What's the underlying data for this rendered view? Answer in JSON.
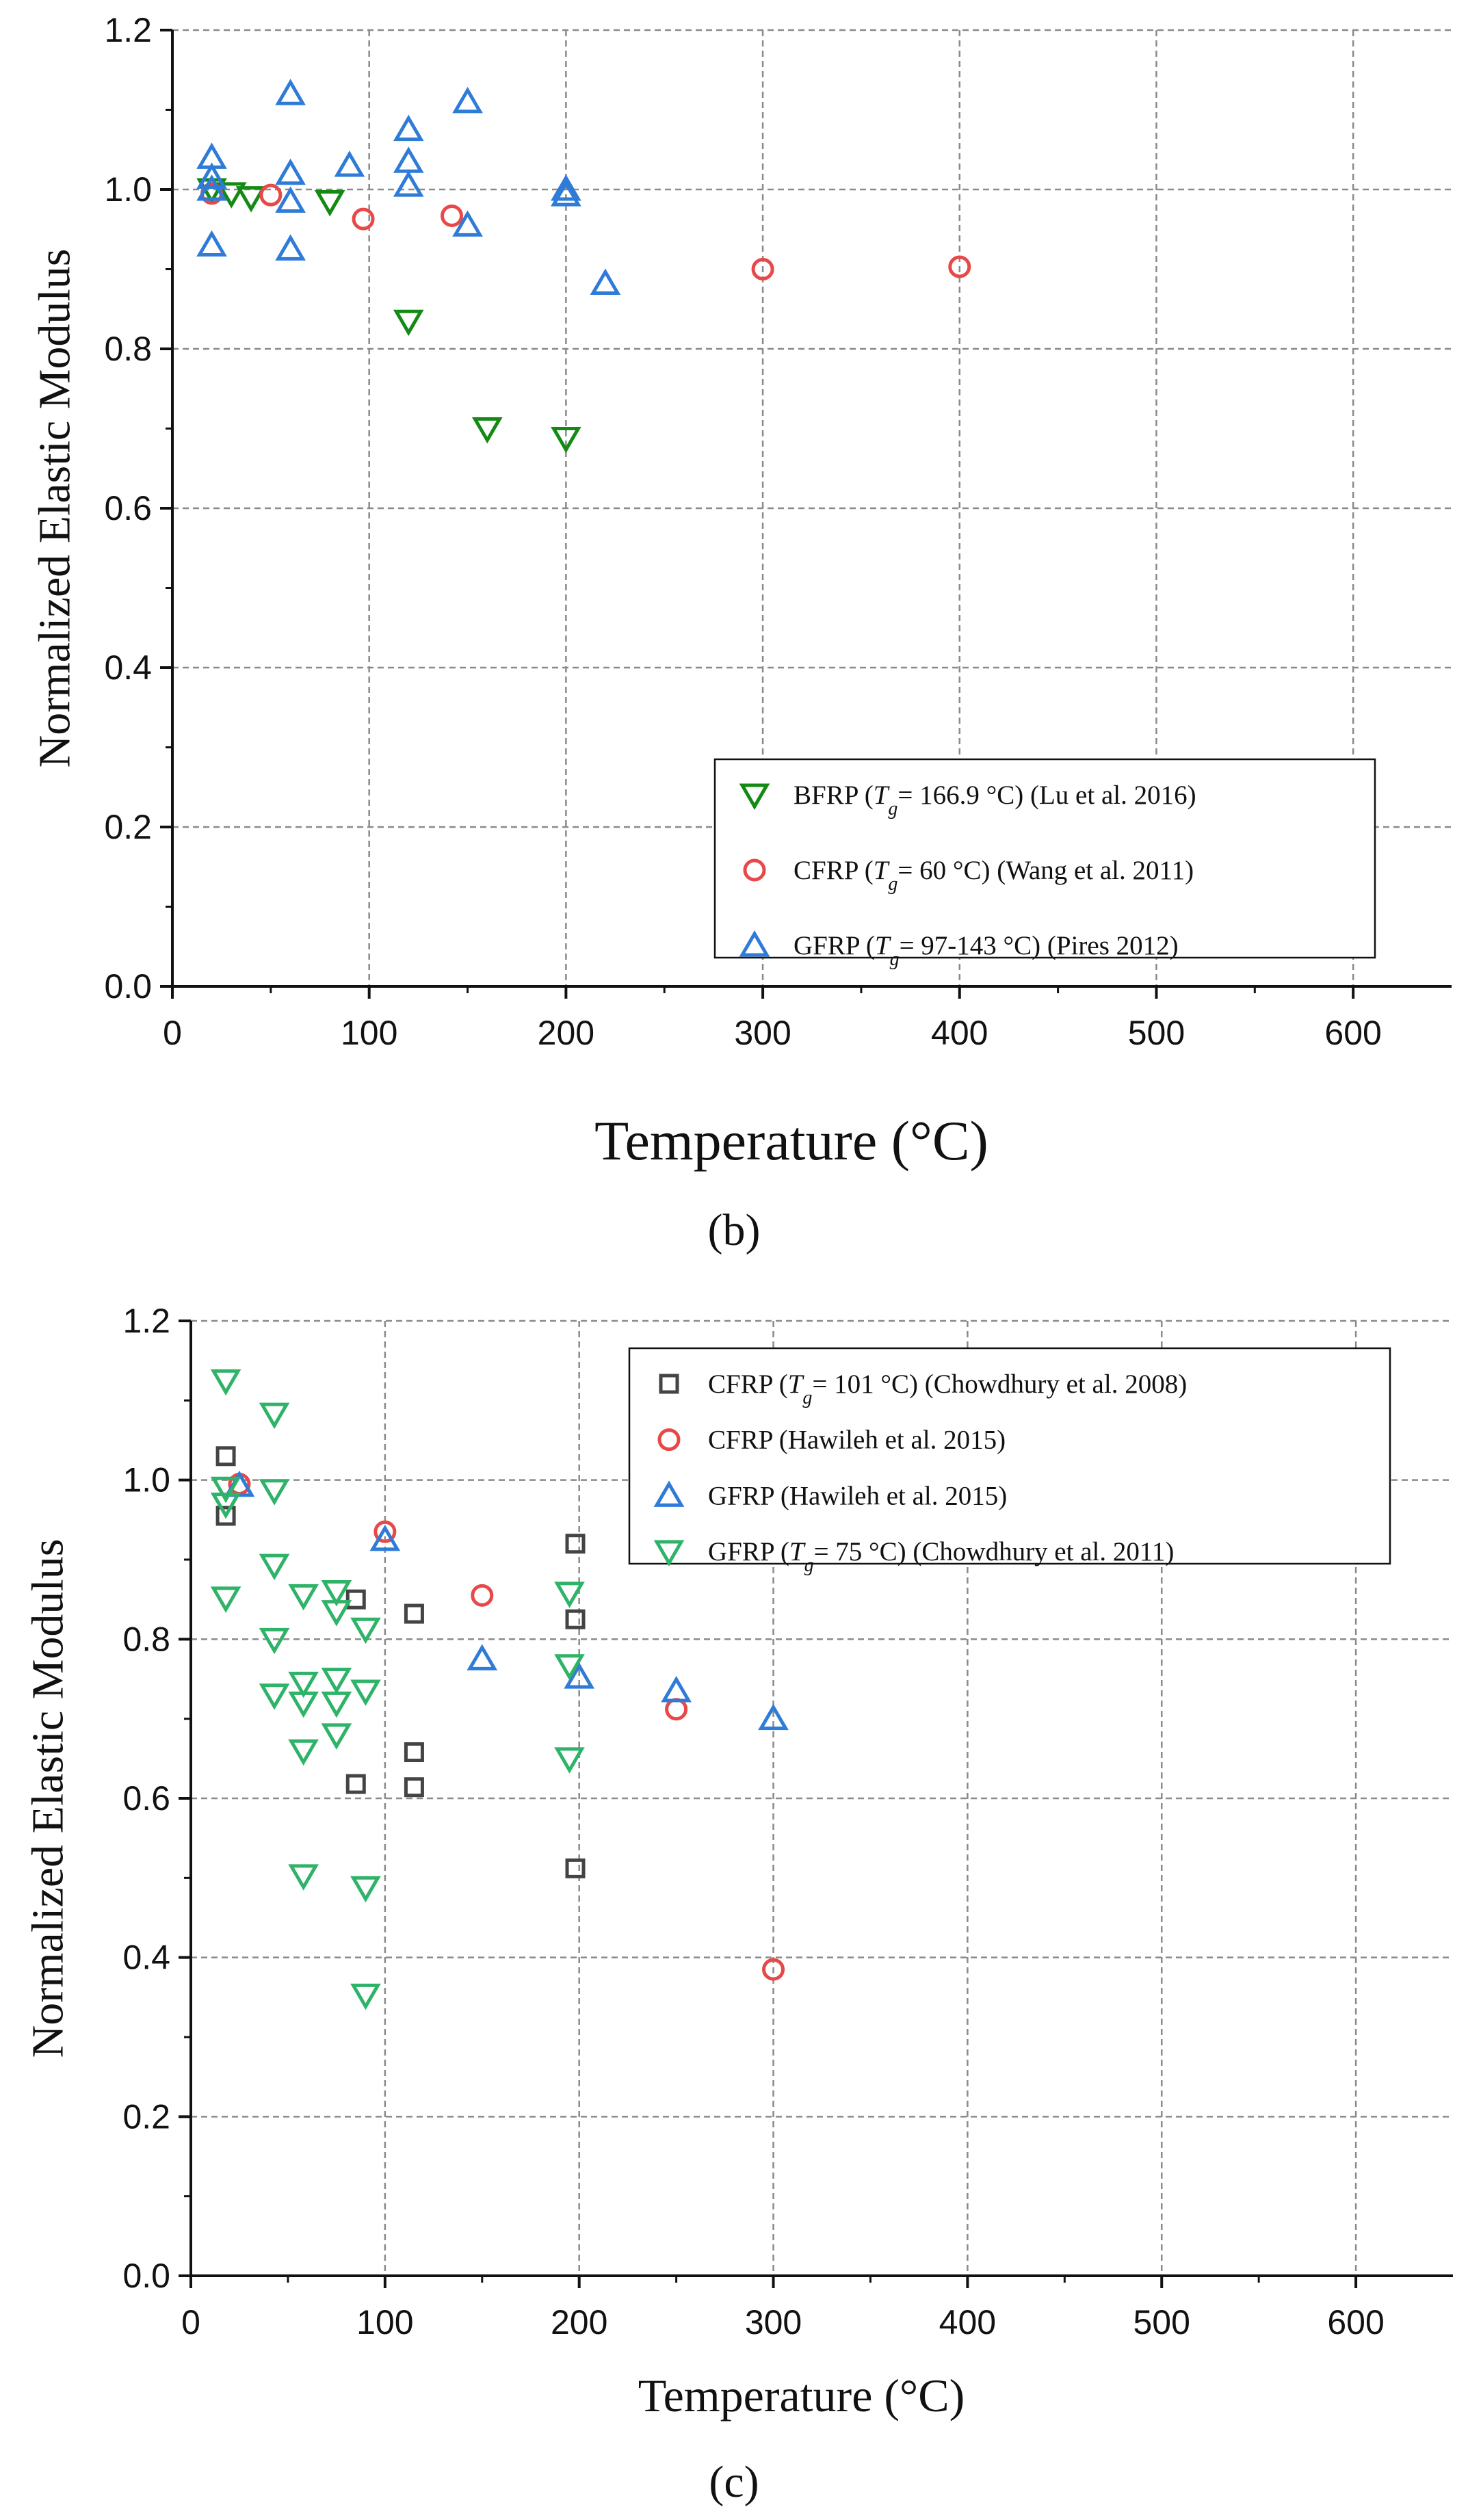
{
  "chart_data": [
    {
      "type": "scatter",
      "panel": "b",
      "caption": "(b)",
      "xlabel": "Temperature (°C)",
      "ylabel": "Normalized Elastic Modulus",
      "xlim": [
        0,
        650
      ],
      "ylim": [
        0,
        1.2
      ],
      "xticks": [
        0,
        100,
        200,
        300,
        400,
        500,
        600
      ],
      "yticks": [
        0.0,
        0.2,
        0.4,
        0.6,
        0.8,
        1.0,
        1.2
      ],
      "ytick_labels": [
        "0.0",
        "0.2",
        "0.4",
        "0.6",
        "0.8",
        "1.0",
        "1.2"
      ],
      "grid": true,
      "legend_position": "bottom-right",
      "series": [
        {
          "legend": [
            {
              "text": "BFRP ("
            },
            {
              "text": "T",
              "italic": true
            },
            {
              "text": "g",
              "italic": true,
              "sub": true
            },
            {
              "text": "= 166.9 °C) (Lu et al. 2016)"
            }
          ],
          "marker": "triangle-down",
          "color": "#138a13",
          "points": [
            [
              20,
              1.0
            ],
            [
              30,
              0.995
            ],
            [
              40,
              0.99
            ],
            [
              80,
              0.985
            ],
            [
              120,
              0.835
            ],
            [
              160,
              0.7
            ],
            [
              200,
              0.688
            ]
          ]
        },
        {
          "legend": [
            {
              "text": "CFRP ("
            },
            {
              "text": "T",
              "italic": true
            },
            {
              "text": "g",
              "italic": true,
              "sub": true
            },
            {
              "text": "= 60 °C) (Wang et al. 2011)"
            }
          ],
          "marker": "circle",
          "color": "#e84848",
          "points": [
            [
              20,
              0.995
            ],
            [
              50,
              0.993
            ],
            [
              97,
              0.963
            ],
            [
              142,
              0.967
            ],
            [
              300,
              0.9
            ],
            [
              400,
              0.903
            ]
          ]
        },
        {
          "legend": [
            {
              "text": "GFRP ("
            },
            {
              "text": "T",
              "italic": true
            },
            {
              "text": "g",
              "italic": true,
              "sub": true
            },
            {
              "text": "= 97-143 °C) (Pires 2012)"
            }
          ],
          "marker": "triangle-up",
          "color": "#2f7bd8",
          "points": [
            [
              20,
              1.04
            ],
            [
              20,
              1.015
            ],
            [
              20,
              1.0
            ],
            [
              20,
              0.93
            ],
            [
              60,
              1.12
            ],
            [
              60,
              1.02
            ],
            [
              60,
              0.985
            ],
            [
              60,
              0.925
            ],
            [
              90,
              1.03
            ],
            [
              120,
              1.075
            ],
            [
              120,
              1.035
            ],
            [
              120,
              1.005
            ],
            [
              150,
              1.11
            ],
            [
              150,
              0.955
            ],
            [
              200,
              1.0
            ],
            [
              200,
              0.993
            ],
            [
              220,
              0.882
            ]
          ]
        }
      ]
    },
    {
      "type": "scatter",
      "panel": "c",
      "caption": "(c)",
      "xlabel": "Temperature (°C)",
      "ylabel": "Normalized Elastic Modulus",
      "xlim": [
        0,
        650
      ],
      "ylim": [
        0,
        1.2
      ],
      "xticks": [
        0,
        100,
        200,
        300,
        400,
        500,
        600
      ],
      "yticks": [
        0.0,
        0.2,
        0.4,
        0.6,
        0.8,
        1.0,
        1.2
      ],
      "ytick_labels": [
        "0.0",
        "0.2",
        "0.4",
        "0.6",
        "0.8",
        "1.0",
        "1.2"
      ],
      "grid": true,
      "legend_position": "top-right",
      "series": [
        {
          "legend": [
            {
              "text": "CFRP ("
            },
            {
              "text": "T",
              "italic": true
            },
            {
              "text": "g",
              "italic": true,
              "sub": true
            },
            {
              "text": "= 101 °C) (Chowdhury et al. 2008)"
            }
          ],
          "marker": "square",
          "color": "#444444",
          "points": [
            [
              18,
              1.03
            ],
            [
              18,
              0.955
            ],
            [
              85,
              0.85
            ],
            [
              85,
              0.618
            ],
            [
              115,
              0.832
            ],
            [
              115,
              0.658
            ],
            [
              115,
              0.614
            ],
            [
              198,
              0.92
            ],
            [
              198,
              0.825
            ],
            [
              198,
              0.512
            ]
          ]
        },
        {
          "legend": [
            {
              "text": "CFRP (Hawileh et al. 2015)"
            }
          ],
          "marker": "circle",
          "color": "#e84848",
          "points": [
            [
              25,
              0.995
            ],
            [
              100,
              0.935
            ],
            [
              150,
              0.855
            ],
            [
              250,
              0.712
            ],
            [
              300,
              0.385
            ]
          ]
        },
        {
          "legend": [
            {
              "text": "GFRP (Hawileh et al. 2015)"
            }
          ],
          "marker": "triangle-up",
          "color": "#2f7bd8",
          "points": [
            [
              25,
              0.993
            ],
            [
              100,
              0.925
            ],
            [
              150,
              0.775
            ],
            [
              200,
              0.752
            ],
            [
              250,
              0.735
            ],
            [
              300,
              0.7
            ]
          ]
        },
        {
          "legend": [
            {
              "text": "GFRP ("
            },
            {
              "text": "T",
              "italic": true
            },
            {
              "text": "g",
              "italic": true,
              "sub": true
            },
            {
              "text": "= 75 °C) (Chowdhury et al. 2011)"
            }
          ],
          "marker": "triangle-down",
          "color": "#2fb368",
          "points": [
            [
              18,
              1.125
            ],
            [
              18,
              0.99
            ],
            [
              18,
              0.97
            ],
            [
              18,
              0.852
            ],
            [
              43,
              1.083
            ],
            [
              43,
              0.987
            ],
            [
              43,
              0.893
            ],
            [
              43,
              0.8
            ],
            [
              43,
              0.73
            ],
            [
              58,
              0.855
            ],
            [
              58,
              0.745
            ],
            [
              58,
              0.72
            ],
            [
              58,
              0.66
            ],
            [
              58,
              0.503
            ],
            [
              75,
              0.86
            ],
            [
              75,
              0.835
            ],
            [
              75,
              0.75
            ],
            [
              75,
              0.72
            ],
            [
              75,
              0.68
            ],
            [
              90,
              0.813
            ],
            [
              90,
              0.735
            ],
            [
              90,
              0.488
            ],
            [
              90,
              0.353
            ],
            [
              195,
              0.858
            ],
            [
              195,
              0.767
            ],
            [
              195,
              0.65
            ]
          ]
        }
      ]
    }
  ]
}
